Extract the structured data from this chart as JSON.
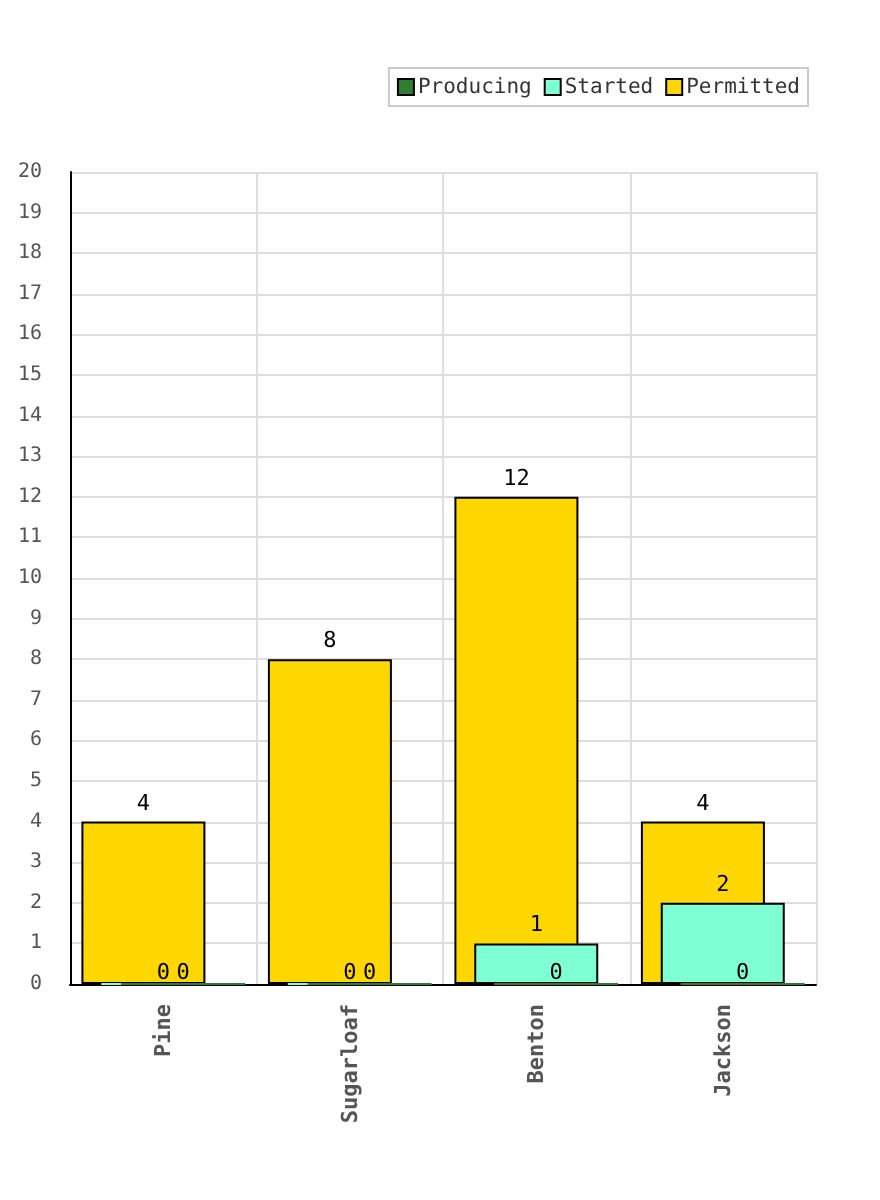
{
  "chart_data": {
    "type": "bar",
    "categories": [
      "Pine",
      "Sugarloaf",
      "Benton",
      "Jackson"
    ],
    "series": [
      {
        "name": "Producing",
        "color": "#2e7d32",
        "values": [
          0,
          0,
          0,
          0
        ]
      },
      {
        "name": "Started",
        "color": "#7fffd4",
        "values": [
          0,
          0,
          1,
          2
        ]
      },
      {
        "name": "Permitted",
        "color": "#ffd700",
        "values": [
          4,
          8,
          12,
          4
        ]
      }
    ],
    "ylim": [
      0,
      20
    ],
    "yticks": [
      0,
      1,
      2,
      3,
      4,
      5,
      6,
      7,
      8,
      9,
      10,
      11,
      12,
      13,
      14,
      15,
      16,
      17,
      18,
      19,
      20
    ],
    "grid": true,
    "legend": "top right",
    "data_labels": true
  }
}
